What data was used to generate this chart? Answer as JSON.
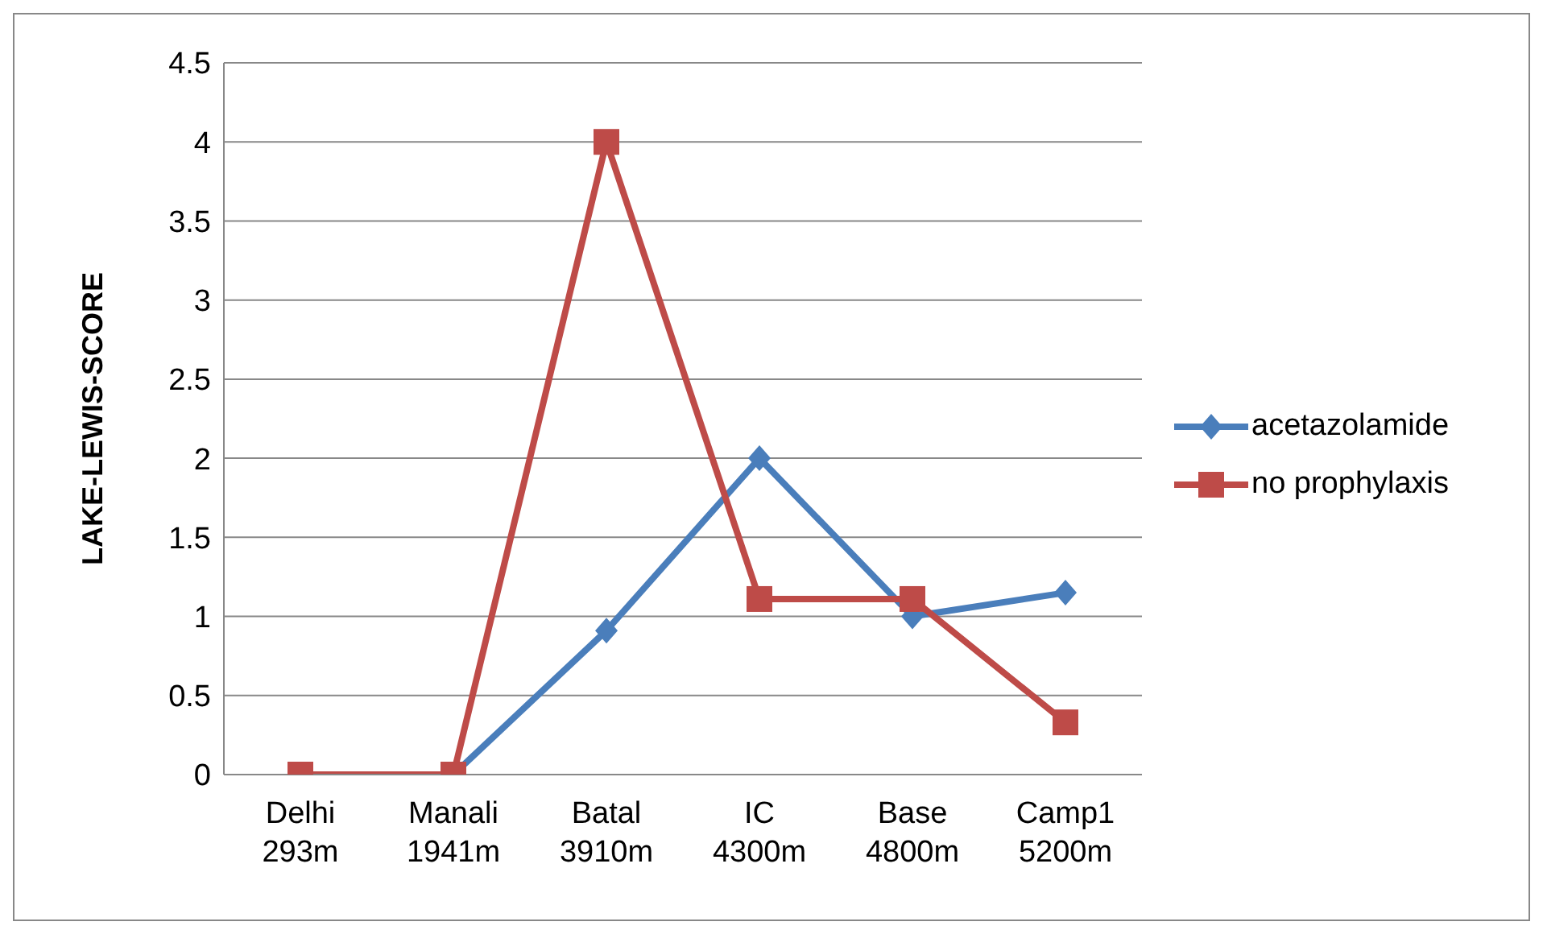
{
  "chart_data": {
    "type": "line",
    "ylabel": "LAKE-LEWIS-SCORE",
    "categories": [
      "Delhi 293m",
      "Manali 1941m",
      "Batal 3910m",
      "IC 4300m",
      "Base 4800m",
      "Camp1 5200m"
    ],
    "series": [
      {
        "name": "acetazolamide",
        "color": "#4a7ebb",
        "marker": "diamond",
        "values": [
          0,
          0,
          0.91,
          2,
          1,
          1.15
        ]
      },
      {
        "name": "no prophylaxis",
        "color": "#be4b48",
        "marker": "square",
        "values": [
          0,
          0,
          4,
          1.11,
          1.11,
          0.33
        ]
      }
    ],
    "ylim": [
      0,
      4.5
    ],
    "yticks": [
      0,
      0.5,
      1,
      1.5,
      2,
      2.5,
      3,
      3.5,
      4,
      4.5
    ],
    "grid": "y",
    "legend": "right",
    "line_style": "solid"
  }
}
